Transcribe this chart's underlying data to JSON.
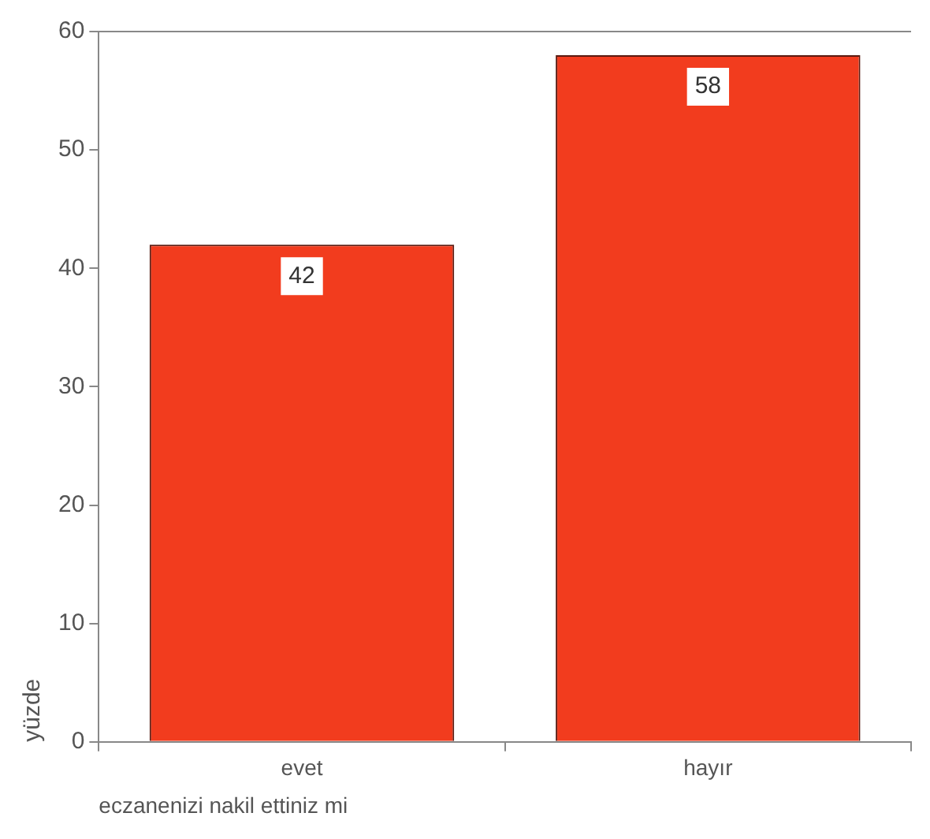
{
  "chart_data": {
    "type": "bar",
    "categories": [
      "evet",
      "hayır"
    ],
    "values": [
      42,
      58
    ],
    "color": "#f23c1e",
    "ylim": [
      0,
      60
    ],
    "yticks": [
      0,
      10,
      20,
      30,
      40,
      50,
      60
    ],
    "xlabel": "eczanenizi nakil ettiniz mi",
    "ylabel": "yüzde",
    "data_labels": true,
    "grid": false,
    "legend": false
  }
}
